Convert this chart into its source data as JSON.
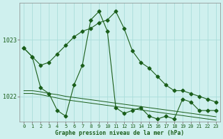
{
  "title": "Graphe pression niveau de la mer (hPa)",
  "bg_color": "#cff0ee",
  "grid_color": "#aaddda",
  "line_color": "#1a5e1a",
  "ylabel_ticks": [
    1022,
    1023
  ],
  "xlim": [
    -0.5,
    23.5
  ],
  "ylim": [
    1021.55,
    1023.65
  ],
  "series_main": {
    "x": [
      0,
      1,
      2,
      3,
      4,
      5,
      6,
      7,
      8,
      9,
      10,
      11,
      12,
      13,
      14,
      15,
      16,
      17,
      18,
      19,
      20,
      21,
      22,
      23
    ],
    "y": [
      1022.85,
      1022.7,
      1022.15,
      1022.05,
      1021.75,
      1021.65,
      1022.2,
      1022.55,
      1023.35,
      1023.5,
      1023.15,
      1021.8,
      1021.7,
      1021.75,
      1021.8,
      1021.65,
      1021.6,
      1021.65,
      1021.6,
      1021.95,
      1021.9,
      1021.75,
      1021.75,
      1021.75
    ]
  },
  "series_upper": {
    "x": [
      0,
      1,
      2,
      3,
      4,
      5,
      6,
      7,
      8,
      9,
      10,
      11,
      12,
      13,
      14,
      15,
      16,
      17,
      18,
      19,
      20,
      21,
      22,
      23
    ],
    "y": [
      1022.85,
      1022.7,
      1022.55,
      1022.6,
      1022.75,
      1022.9,
      1023.05,
      1023.15,
      1023.2,
      1023.3,
      1023.35,
      1023.5,
      1023.2,
      1022.8,
      1022.6,
      1022.5,
      1022.35,
      1022.2,
      1022.1,
      1022.1,
      1022.05,
      1022.0,
      1021.95,
      1021.9
    ]
  },
  "series_flat1": {
    "x": [
      0,
      1,
      2,
      3,
      4,
      5,
      6,
      7,
      8,
      9,
      10,
      11,
      12,
      13,
      14,
      15,
      16,
      17,
      18,
      19,
      20,
      21,
      22,
      23
    ],
    "y": [
      1022.1,
      1022.1,
      1022.08,
      1022.05,
      1022.03,
      1022.0,
      1021.98,
      1021.96,
      1021.94,
      1021.92,
      1021.9,
      1021.88,
      1021.86,
      1021.84,
      1021.82,
      1021.8,
      1021.78,
      1021.76,
      1021.74,
      1021.72,
      1021.7,
      1021.68,
      1021.66,
      1021.64
    ]
  },
  "series_flat2": {
    "x": [
      0,
      1,
      2,
      3,
      4,
      5,
      6,
      7,
      8,
      9,
      10,
      11,
      12,
      13,
      14,
      15,
      16,
      17,
      18,
      19,
      20,
      21,
      22,
      23
    ],
    "y": [
      1022.05,
      1022.05,
      1022.03,
      1022.0,
      1021.97,
      1021.94,
      1021.92,
      1021.9,
      1021.88,
      1021.86,
      1021.84,
      1021.82,
      1021.8,
      1021.78,
      1021.76,
      1021.74,
      1021.72,
      1021.7,
      1021.68,
      1021.66,
      1021.64,
      1021.62,
      1021.6,
      1021.58
    ]
  }
}
